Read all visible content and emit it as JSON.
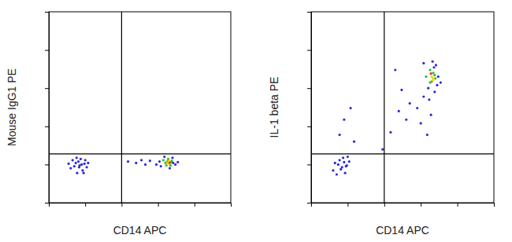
{
  "chart_data": [
    {
      "type": "scatter",
      "x_label": "CD14 APC",
      "y_label": "Mouse IgG1 PE",
      "log": true,
      "tick_labels": false,
      "xlim": [
        10,
        1000000
      ],
      "ylim": [
        10,
        1000000
      ],
      "xticks": [
        100,
        1000,
        10000,
        100000
      ],
      "yticks": [
        100,
        1000,
        10000,
        100000
      ],
      "quadrant": {
        "x": 1000,
        "y": 190
      },
      "x": [
        40,
        55,
        70,
        85,
        60,
        45,
        75,
        95,
        110,
        65,
        50,
        80,
        100,
        35,
        90,
        68,
        58,
        120,
        1500,
        2500,
        3500,
        4500,
        6000,
        9000,
        12000,
        14000,
        16000,
        18000,
        20000,
        22000,
        24000,
        26000,
        30000,
        15000,
        19000,
        21000,
        25000,
        11000,
        35000,
        17000,
        23000,
        20000,
        18000,
        21000
      ],
      "y": [
        80,
        110,
        95,
        70,
        60,
        130,
        140,
        105,
        85,
        120,
        90,
        100,
        130,
        105,
        60,
        85,
        150,
        110,
        120,
        110,
        130,
        100,
        125,
        100,
        90,
        130,
        110,
        120,
        105,
        95,
        125,
        110,
        100,
        160,
        140,
        80,
        150,
        120,
        115,
        95,
        115,
        125,
        110,
        112
      ],
      "colors": [
        "#2a2ad4",
        "#2a2ad4",
        "#2a2ad4",
        "#2a2ad4",
        "#2a2ad4",
        "#2a2ad4",
        "#2a2ad4",
        "#2a2ad4",
        "#2a2ad4",
        "#2a2ad4",
        "#2a2ad4",
        "#2a2ad4",
        "#2a2ad4",
        "#2a2ad4",
        "#2a2ad4",
        "#2a2ad4",
        "#2a2ad4",
        "#2a2ad4",
        "#2a2ad4",
        "#2a2ad4",
        "#2a2ad4",
        "#2a2ad4",
        "#2a2ad4",
        "#2a2ad4",
        "#2a2ad4",
        "#2db82d",
        "#2db82d",
        "#2db82d",
        "#f0d000",
        "#2db82d",
        "#2db82d",
        "#2a2ad4",
        "#2a2ad4",
        "#2a2ad4",
        "#2db82d",
        "#2a2ad4",
        "#2a2ad4",
        "#2a2ad4",
        "#2a2ad4",
        "#2db82d",
        "#2db82d",
        "#f0d000",
        "#f0d000",
        "#e03020"
      ]
    },
    {
      "type": "scatter",
      "x_label": "CD14 APC",
      "y_label": "IL-1 beta PE",
      "log": true,
      "tick_labels": false,
      "xlim": [
        10,
        1000000
      ],
      "ylim": [
        10,
        1000000
      ],
      "xticks": [
        100,
        1000,
        10000,
        100000
      ],
      "yticks": [
        100,
        1000,
        10000,
        100000
      ],
      "quadrant": {
        "x": 1000,
        "y": 190
      },
      "x": [
        40,
        55,
        70,
        85,
        60,
        45,
        75,
        95,
        110,
        65,
        50,
        80,
        100,
        90,
        60,
        80,
        120,
        150,
        900,
        1500,
        2500,
        3000,
        2000,
        4000,
        5000,
        8000,
        10000,
        12000,
        14000,
        16000,
        18000,
        20000,
        22000,
        24000,
        26000,
        28000,
        30000,
        15000,
        19000,
        21000,
        25000,
        17000,
        23000,
        35000,
        12000,
        20000,
        22000,
        19000,
        24000,
        21000,
        18000
      ],
      "y": [
        70,
        100,
        85,
        60,
        130,
        110,
        150,
        95,
        120,
        75,
        55,
        115,
        160,
        90,
        600,
        1500,
        3000,
        400,
        250,
        700,
        2500,
        9000,
        30000,
        1500,
        4000,
        3000,
        1200,
        6000,
        20000,
        10000,
        30000,
        15000,
        25000,
        8000,
        40000,
        12000,
        20000,
        600,
        2000,
        50000,
        18000,
        5000,
        35000,
        14000,
        45000,
        20000,
        18000,
        24000,
        22000,
        16000,
        14000
      ],
      "colors": [
        "#2a2ad4",
        "#2a2ad4",
        "#2a2ad4",
        "#2a2ad4",
        "#2a2ad4",
        "#2a2ad4",
        "#2a2ad4",
        "#2a2ad4",
        "#2a2ad4",
        "#2a2ad4",
        "#2a2ad4",
        "#2a2ad4",
        "#2a2ad4",
        "#2a2ad4",
        "#2a2ad4",
        "#2a2ad4",
        "#2a2ad4",
        "#2a2ad4",
        "#2a2ad4",
        "#2a2ad4",
        "#2a2ad4",
        "#2a2ad4",
        "#2a2ad4",
        "#2a2ad4",
        "#2a2ad4",
        "#2a2ad4",
        "#2a2ad4",
        "#2a2ad4",
        "#2db82d",
        "#2a2ad4",
        "#2db82d",
        "#2db82d",
        "#2db82d",
        "#2a2ad4",
        "#2a2ad4",
        "#2a2ad4",
        "#2a2ad4",
        "#2a2ad4",
        "#2a2ad4",
        "#2a2ad4",
        "#2db82d",
        "#2a2ad4",
        "#2a2ad4",
        "#2a2ad4",
        "#2a2ad4",
        "#f0d000",
        "#f0d000",
        "#e03020",
        "#2db82d",
        "#f0d000",
        "#2db82d"
      ]
    }
  ]
}
